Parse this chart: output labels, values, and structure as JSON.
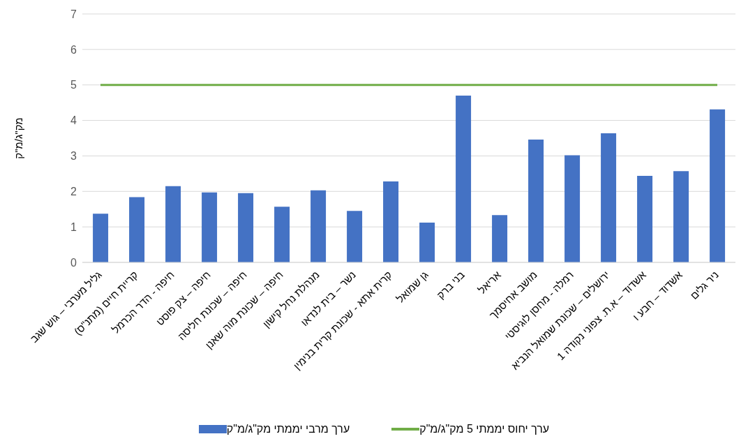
{
  "chart_data": {
    "type": "bar",
    "ylabel": "מק\"ג/מ\"ק",
    "categories": [
      "גליל מערבי – גוש שגב",
      "קריית חיים (מתנ\"ס)",
      "חיפה - הדר הכרמל",
      "חיפה – צק פוסט",
      "חיפה – שכונת חליסה",
      "חיפה – שכונת מוה שאנן",
      "מנהלת נחל קישון",
      "נשר – בית לנדאו",
      "קרית אתא - שכונת קרית בנימין",
      "גן שמואל",
      "בני ברק",
      "אריאל",
      "מושב אחיסמך",
      "רמלה - מחסן לוגיסטי",
      "ירושלים – שכונת שמואל הנביא",
      "אשדוד – א.ת. צפוני נקודה 1",
      "אשדוד – חבע ו",
      "ניר גלים"
    ],
    "series": [
      {
        "name": "ערך מרבי יממתי מק\"ג/מ\"ק",
        "color": "#4472c4",
        "values": [
          1.37,
          1.84,
          2.15,
          1.97,
          1.95,
          1.57,
          2.03,
          1.45,
          2.28,
          1.12,
          4.7,
          1.33,
          3.46,
          3.02,
          3.64,
          2.44,
          2.57,
          4.31
        ]
      },
      {
        "name": "ערך יחוס יממתי 5 מק\"ג/מ\"ק",
        "type": "line",
        "color": "#70ad47",
        "marker": "none",
        "values": [
          5,
          5,
          5,
          5,
          5,
          5,
          5,
          5,
          5,
          5,
          5,
          5,
          5,
          5,
          5,
          5,
          5,
          5
        ]
      }
    ],
    "ylim": [
      0,
      7
    ],
    "yticks": [
      0,
      1,
      2,
      3,
      4,
      5,
      6,
      7
    ],
    "grid": "y",
    "legend": "bottom"
  }
}
